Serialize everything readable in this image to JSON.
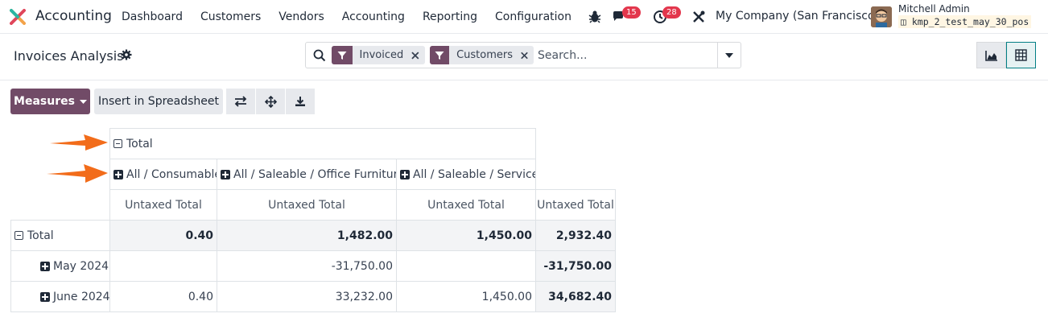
{
  "navbar": {
    "app_name": "Accounting",
    "menu": [
      "Dashboard",
      "Customers",
      "Vendors",
      "Accounting",
      "Reporting",
      "Configuration"
    ],
    "messages_count": "15",
    "activities_count": "28",
    "company": "My Company (San Francisco)",
    "user_name": "Mitchell Admin",
    "database": "kmp_2_test_may_30_pos"
  },
  "control_panel": {
    "title": "Invoices Analysis",
    "facets": [
      "Invoiced",
      "Customers"
    ],
    "search_placeholder": "Search..."
  },
  "toolbar": {
    "measures_label": "Measures",
    "spreadsheet_label": "Insert in Spreadsheet"
  },
  "pivot": {
    "col_root": "Total",
    "col_groups": [
      "All / Consumable",
      "All / Saleable / Office Furniture",
      "All / Saleable / Services"
    ],
    "measure": "Untaxed Total",
    "rows": [
      {
        "label": "Total",
        "values": [
          "0.40",
          "1,482.00",
          "1,450.00",
          "2,932.40"
        ]
      },
      {
        "label": "May 2024",
        "values": [
          "",
          "-31,750.00",
          "",
          "-31,750.00"
        ]
      },
      {
        "label": "June 2024",
        "values": [
          "0.40",
          "33,232.00",
          "1,450.00",
          "34,682.40"
        ]
      }
    ]
  },
  "colors": {
    "brand": "#714b67",
    "badge": "#e3364c",
    "annotation_arrow": "#f26c1a",
    "active_view": "#017e84"
  }
}
